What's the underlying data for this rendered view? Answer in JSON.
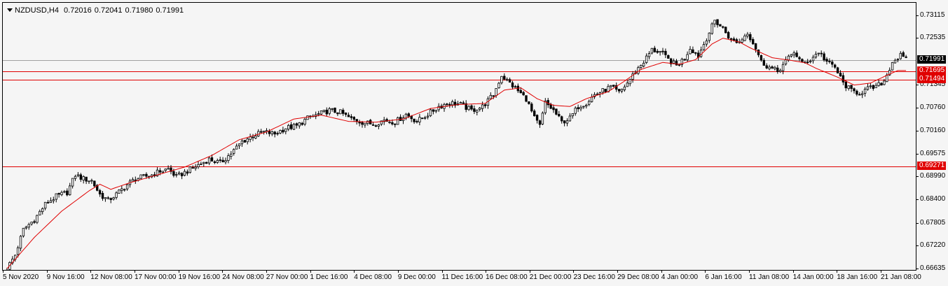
{
  "header": {
    "symbol": "NZDUSD,H4",
    "open": "0.72016",
    "high": "0.72041",
    "low": "0.71980",
    "close": "0.71991"
  },
  "colors": {
    "background": "#f5f5f5",
    "candle_line": "#000000",
    "bull_body": "#ffffff",
    "bear_body": "#000000",
    "moving_average": "#e00000",
    "level_line": "#e00000",
    "price_line": "#a0a0a0",
    "level_tag_bg": "#e00000",
    "level_tag_text": "#ffffff",
    "price_tag_bg": "#000000",
    "price_tag_text": "#ffffff"
  },
  "y_axis": {
    "ticks": [
      "0.73115",
      "0.72535",
      "0.71345",
      "0.70760",
      "0.70160",
      "0.69575",
      "0.68990",
      "0.68400",
      "0.67805",
      "0.67220",
      "0.66635"
    ]
  },
  "x_axis": {
    "labels": [
      "5 Nov 2020",
      "9 Nov 16:00",
      "12 Nov 08:00",
      "17 Nov 00:00",
      "19 Nov 16:00",
      "24 Nov 08:00",
      "27 Nov 00:00",
      "1 Dec 16:00",
      "4 Dec 08:00",
      "9 Dec 00:00",
      "11 Dec 16:00",
      "16 Dec 08:00",
      "21 Dec 00:00",
      "23 Dec 16:00",
      "29 Dec 08:00",
      "4 Jan 00:00",
      "6 Jan 16:00",
      "11 Jan 08:00",
      "14 Jan 00:00",
      "18 Jan 16:00",
      "21 Jan 08:00"
    ]
  },
  "levels": [
    {
      "price": 0.71695,
      "label": "0.71695"
    },
    {
      "price": 0.71494,
      "label": "0.71494"
    },
    {
      "price": 0.69271,
      "label": "0.69271"
    }
  ],
  "current_price": {
    "price": 0.71991,
    "label": "0.71991"
  },
  "chart_data": {
    "type": "candlestick",
    "symbol": "NZDUSD",
    "timeframe": "H4",
    "ylim": [
      0.66635,
      0.73115
    ],
    "grid": false,
    "moving_average_anchors": [
      [
        0,
        0.6665
      ],
      [
        10,
        0.6745
      ],
      [
        20,
        0.6812
      ],
      [
        30,
        0.6864
      ],
      [
        34,
        0.6881
      ],
      [
        38,
        0.6868
      ],
      [
        45,
        0.6885
      ],
      [
        55,
        0.6905
      ],
      [
        65,
        0.6925
      ],
      [
        75,
        0.6955
      ],
      [
        85,
        0.6995
      ],
      [
        95,
        0.7015
      ],
      [
        105,
        0.7048
      ],
      [
        115,
        0.7058
      ],
      [
        125,
        0.7042
      ],
      [
        135,
        0.704
      ],
      [
        145,
        0.7048
      ],
      [
        155,
        0.7075
      ],
      [
        165,
        0.7085
      ],
      [
        175,
        0.7088
      ],
      [
        182,
        0.7122
      ],
      [
        188,
        0.7128
      ],
      [
        194,
        0.71
      ],
      [
        200,
        0.7083
      ],
      [
        206,
        0.708
      ],
      [
        212,
        0.71
      ],
      [
        220,
        0.7118
      ],
      [
        226,
        0.7145
      ],
      [
        232,
        0.7175
      ],
      [
        240,
        0.7193
      ],
      [
        246,
        0.7188
      ],
      [
        252,
        0.72
      ],
      [
        258,
        0.724
      ],
      [
        262,
        0.7255
      ],
      [
        268,
        0.7245
      ],
      [
        272,
        0.723
      ],
      [
        280,
        0.7205
      ],
      [
        287,
        0.7198
      ],
      [
        292,
        0.7192
      ],
      [
        296,
        0.7178
      ],
      [
        304,
        0.7155
      ],
      [
        310,
        0.7135
      ],
      [
        316,
        0.714
      ],
      [
        322,
        0.716
      ],
      [
        326,
        0.7172
      ]
    ],
    "close_anchors": [
      [
        0,
        0.6666
      ],
      [
        3,
        0.67
      ],
      [
        6,
        0.6765
      ],
      [
        10,
        0.679
      ],
      [
        14,
        0.683
      ],
      [
        18,
        0.685
      ],
      [
        22,
        0.686
      ],
      [
        25,
        0.6905
      ],
      [
        28,
        0.6895
      ],
      [
        31,
        0.689
      ],
      [
        34,
        0.6855
      ],
      [
        37,
        0.684
      ],
      [
        40,
        0.6855
      ],
      [
        44,
        0.688
      ],
      [
        47,
        0.6895
      ],
      [
        50,
        0.69
      ],
      [
        53,
        0.6905
      ],
      [
        56,
        0.6915
      ],
      [
        59,
        0.692
      ],
      [
        62,
        0.69
      ],
      [
        66,
        0.6915
      ],
      [
        70,
        0.693
      ],
      [
        74,
        0.6945
      ],
      [
        78,
        0.6935
      ],
      [
        82,
        0.696
      ],
      [
        86,
        0.699
      ],
      [
        90,
        0.7005
      ],
      [
        94,
        0.7015
      ],
      [
        98,
        0.701
      ],
      [
        102,
        0.7025
      ],
      [
        106,
        0.703
      ],
      [
        110,
        0.705
      ],
      [
        114,
        0.706
      ],
      [
        118,
        0.707
      ],
      [
        122,
        0.7065
      ],
      [
        126,
        0.7048
      ],
      [
        130,
        0.704
      ],
      [
        134,
        0.7035
      ],
      [
        138,
        0.7045
      ],
      [
        142,
        0.704
      ],
      [
        146,
        0.706
      ],
      [
        150,
        0.7042
      ],
      [
        154,
        0.706
      ],
      [
        158,
        0.708
      ],
      [
        162,
        0.709
      ],
      [
        166,
        0.7085
      ],
      [
        170,
        0.707
      ],
      [
        174,
        0.708
      ],
      [
        178,
        0.711
      ],
      [
        181,
        0.716
      ],
      [
        184,
        0.714
      ],
      [
        187,
        0.712
      ],
      [
        190,
        0.71
      ],
      [
        193,
        0.705
      ],
      [
        195,
        0.703
      ],
      [
        197,
        0.709
      ],
      [
        200,
        0.707
      ],
      [
        203,
        0.704
      ],
      [
        206,
        0.705
      ],
      [
        209,
        0.708
      ],
      [
        212,
        0.709
      ],
      [
        215,
        0.711
      ],
      [
        218,
        0.712
      ],
      [
        221,
        0.713
      ],
      [
        224,
        0.7115
      ],
      [
        227,
        0.714
      ],
      [
        230,
        0.717
      ],
      [
        233,
        0.7195
      ],
      [
        236,
        0.7225
      ],
      [
        239,
        0.722
      ],
      [
        242,
        0.72
      ],
      [
        245,
        0.7185
      ],
      [
        248,
        0.7205
      ],
      [
        250,
        0.723
      ],
      [
        253,
        0.721
      ],
      [
        256,
        0.7255
      ],
      [
        259,
        0.73
      ],
      [
        262,
        0.728
      ],
      [
        265,
        0.725
      ],
      [
        268,
        0.7245
      ],
      [
        271,
        0.727
      ],
      [
        274,
        0.723
      ],
      [
        276,
        0.7195
      ],
      [
        279,
        0.718
      ],
      [
        282,
        0.717
      ],
      [
        285,
        0.7195
      ],
      [
        288,
        0.722
      ],
      [
        291,
        0.719
      ],
      [
        294,
        0.72
      ],
      [
        297,
        0.722
      ],
      [
        300,
        0.7195
      ],
      [
        303,
        0.718
      ],
      [
        306,
        0.714
      ],
      [
        309,
        0.712
      ],
      [
        312,
        0.7115
      ],
      [
        315,
        0.7125
      ],
      [
        318,
        0.713
      ],
      [
        321,
        0.7145
      ],
      [
        324,
        0.7195
      ],
      [
        327,
        0.721
      ],
      [
        329,
        0.7199
      ]
    ]
  }
}
